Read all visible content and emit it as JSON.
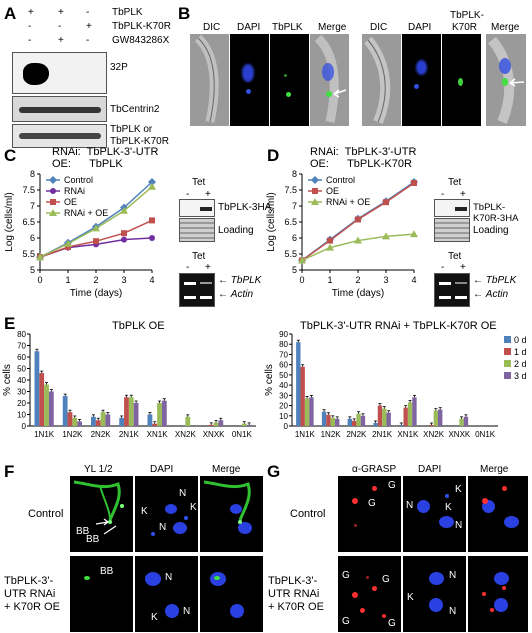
{
  "panels": {
    "A": "A",
    "B": "B",
    "C": "C",
    "D": "D",
    "E": "E",
    "F": "F",
    "G": "G"
  },
  "panel_a": {
    "rows": [
      {
        "label": "TbPLK",
        "signs": [
          "+",
          "+",
          "-"
        ]
      },
      {
        "label": "TbPLK-K70R",
        "signs": [
          "-",
          "-",
          "+"
        ]
      },
      {
        "label": "GW843286X",
        "signs": [
          "-",
          "+",
          "-"
        ]
      }
    ],
    "blot_labels": [
      "32P",
      "TbCentrin2",
      "TbPLK or",
      "TbPLK-K70R"
    ]
  },
  "panel_b": {
    "left_headers": [
      "DIC",
      "DAPI",
      "TbPLK",
      "Merge"
    ],
    "right_headers": [
      "DIC",
      "DAPI",
      "TbPLK-",
      "K70R",
      "Merge"
    ]
  },
  "panel_c": {
    "title1": "RNAi:  TbPLK-3'-UTR",
    "title2": "OE:      TbPLK",
    "tet": "Tet",
    "minus": "-",
    "plus": "+",
    "blot1": "TbPLK-3HA",
    "loading": "Loading",
    "gene": "TbPLK",
    "actin": "Actin"
  },
  "panel_d": {
    "title1": "RNAi:  TbPLK-3'-UTR",
    "title2": "OE:      TbPLK-K70R",
    "tet": "Tet",
    "minus": "-",
    "plus": "+",
    "blot1": "TbPLK-K70R-3HA",
    "loading": "Loading",
    "gene": "TbPLK",
    "actin": "Actin"
  },
  "panel_e": {
    "title_left": "TbPLK OE",
    "title_right": "TbPLK-3'-UTR RNAi + TbPLK-K70R OE"
  },
  "panel_f": {
    "headers": [
      "YL 1/2",
      "DAPI",
      "Merge"
    ],
    "row1": "Control",
    "row2a": "TbPLK-3'-",
    "row2b": "UTR RNAi",
    "row2c": "+ K70R OE",
    "marks": [
      "BB",
      "BB",
      "K",
      "N",
      "K",
      "N",
      "BB",
      "N",
      "K",
      "N"
    ]
  },
  "panel_g": {
    "headers": [
      "α-GRASP",
      "DAPI",
      "Merge"
    ],
    "row1": "Control",
    "row2a": "TbPLK-3'-",
    "row2b": "UTR RNAi",
    "row2c": "+ K70R OE",
    "marks": [
      "G",
      "G",
      "K",
      "N",
      "K",
      "N",
      "G",
      "G",
      "G",
      "G",
      "K",
      "N",
      "N"
    ]
  },
  "colors": {
    "control": "#4f81bd",
    "rnai": "#7030a0",
    "oe": "#c0504d",
    "rnai_oe": "#9bbb59",
    "d0": "#4f81bd",
    "d1": "#c0504d",
    "d2": "#9bbb59",
    "d3": "#8064a2"
  },
  "chart_data": [
    {
      "type": "line",
      "panel": "C",
      "x": [
        0,
        1,
        2,
        3,
        4
      ],
      "xlabel": "Time (days)",
      "ylabel": "Log (cells/ml)",
      "ylim": [
        5,
        8
      ],
      "yticks": [
        "5",
        "5.5",
        "6",
        "6.5",
        "7",
        "7.5",
        "8"
      ],
      "xticks": [
        "0",
        "1",
        "2",
        "3",
        "4"
      ],
      "legend": "top-left",
      "series": [
        {
          "name": "Control",
          "values": [
            5.4,
            5.85,
            6.35,
            6.95,
            7.75
          ]
        },
        {
          "name": "RNAi",
          "values": [
            5.4,
            5.7,
            5.8,
            5.95,
            6.0
          ]
        },
        {
          "name": "OE",
          "values": [
            5.4,
            5.72,
            5.9,
            6.15,
            6.55
          ]
        },
        {
          "name": "RNAi + OE",
          "values": [
            5.4,
            5.82,
            6.3,
            6.85,
            7.6
          ]
        }
      ]
    },
    {
      "type": "line",
      "panel": "D",
      "x": [
        0,
        1,
        2,
        3,
        4
      ],
      "xlabel": "Time (days)",
      "ylabel": "Log (cells/ml)",
      "ylim": [
        5,
        8
      ],
      "yticks": [
        "5",
        "5.5",
        "6",
        "6.5",
        "7",
        "7.5",
        "8"
      ],
      "xticks": [
        "0",
        "1",
        "2",
        "3",
        "4"
      ],
      "legend": "top-left",
      "series": [
        {
          "name": "Control",
          "values": [
            5.3,
            5.95,
            6.6,
            7.15,
            7.75
          ]
        },
        {
          "name": "OE",
          "values": [
            5.3,
            5.92,
            6.58,
            7.12,
            7.72
          ]
        },
        {
          "name": "RNAi + OE",
          "values": [
            5.3,
            5.7,
            5.92,
            6.05,
            6.12
          ]
        }
      ]
    },
    {
      "type": "bar",
      "panel": "E-left",
      "categories": [
        "1N1K",
        "1N2K",
        "2N2K",
        "2N1K",
        "XN1K",
        "XN2K",
        "XNXK",
        "0N1K"
      ],
      "ylabel": "% cells",
      "ylim": [
        0,
        80
      ],
      "yticks": [
        "0",
        "10",
        "20",
        "30",
        "40",
        "50",
        "60",
        "70",
        "80"
      ],
      "legend": "none",
      "series": [
        {
          "name": "0 d",
          "values": [
            65,
            26,
            8,
            7,
            10,
            0,
            0,
            0
          ]
        },
        {
          "name": "1 d",
          "values": [
            46,
            12,
            5,
            25,
            2,
            0,
            1,
            0
          ]
        },
        {
          "name": "2 d",
          "values": [
            36,
            7,
            12,
            25,
            20,
            8,
            3,
            2
          ]
        },
        {
          "name": "3 d",
          "values": [
            30,
            4,
            10,
            20,
            22,
            0,
            5,
            1
          ]
        }
      ]
    },
    {
      "type": "bar",
      "panel": "E-right",
      "categories": [
        "1N1K",
        "1N2K",
        "2N2K",
        "2N1K",
        "XN1K",
        "XN2K",
        "XNXK",
        "0N1K"
      ],
      "ylabel": "% cells",
      "ylim": [
        0,
        90
      ],
      "yticks": [
        "0",
        "10",
        "20",
        "30",
        "40",
        "50",
        "60",
        "70",
        "80",
        "90"
      ],
      "legend": "right",
      "series": [
        {
          "name": "0 d",
          "values": [
            82,
            14,
            7,
            3,
            1,
            0,
            0,
            0
          ]
        },
        {
          "name": "1 d",
          "values": [
            58,
            11,
            5,
            20,
            18,
            1,
            0,
            0
          ]
        },
        {
          "name": "2 d",
          "values": [
            27,
            8,
            12,
            17,
            23,
            15,
            7,
            0
          ]
        },
        {
          "name": "3 d",
          "values": [
            28,
            7,
            10,
            13,
            28,
            16,
            9,
            0
          ]
        }
      ]
    }
  ]
}
